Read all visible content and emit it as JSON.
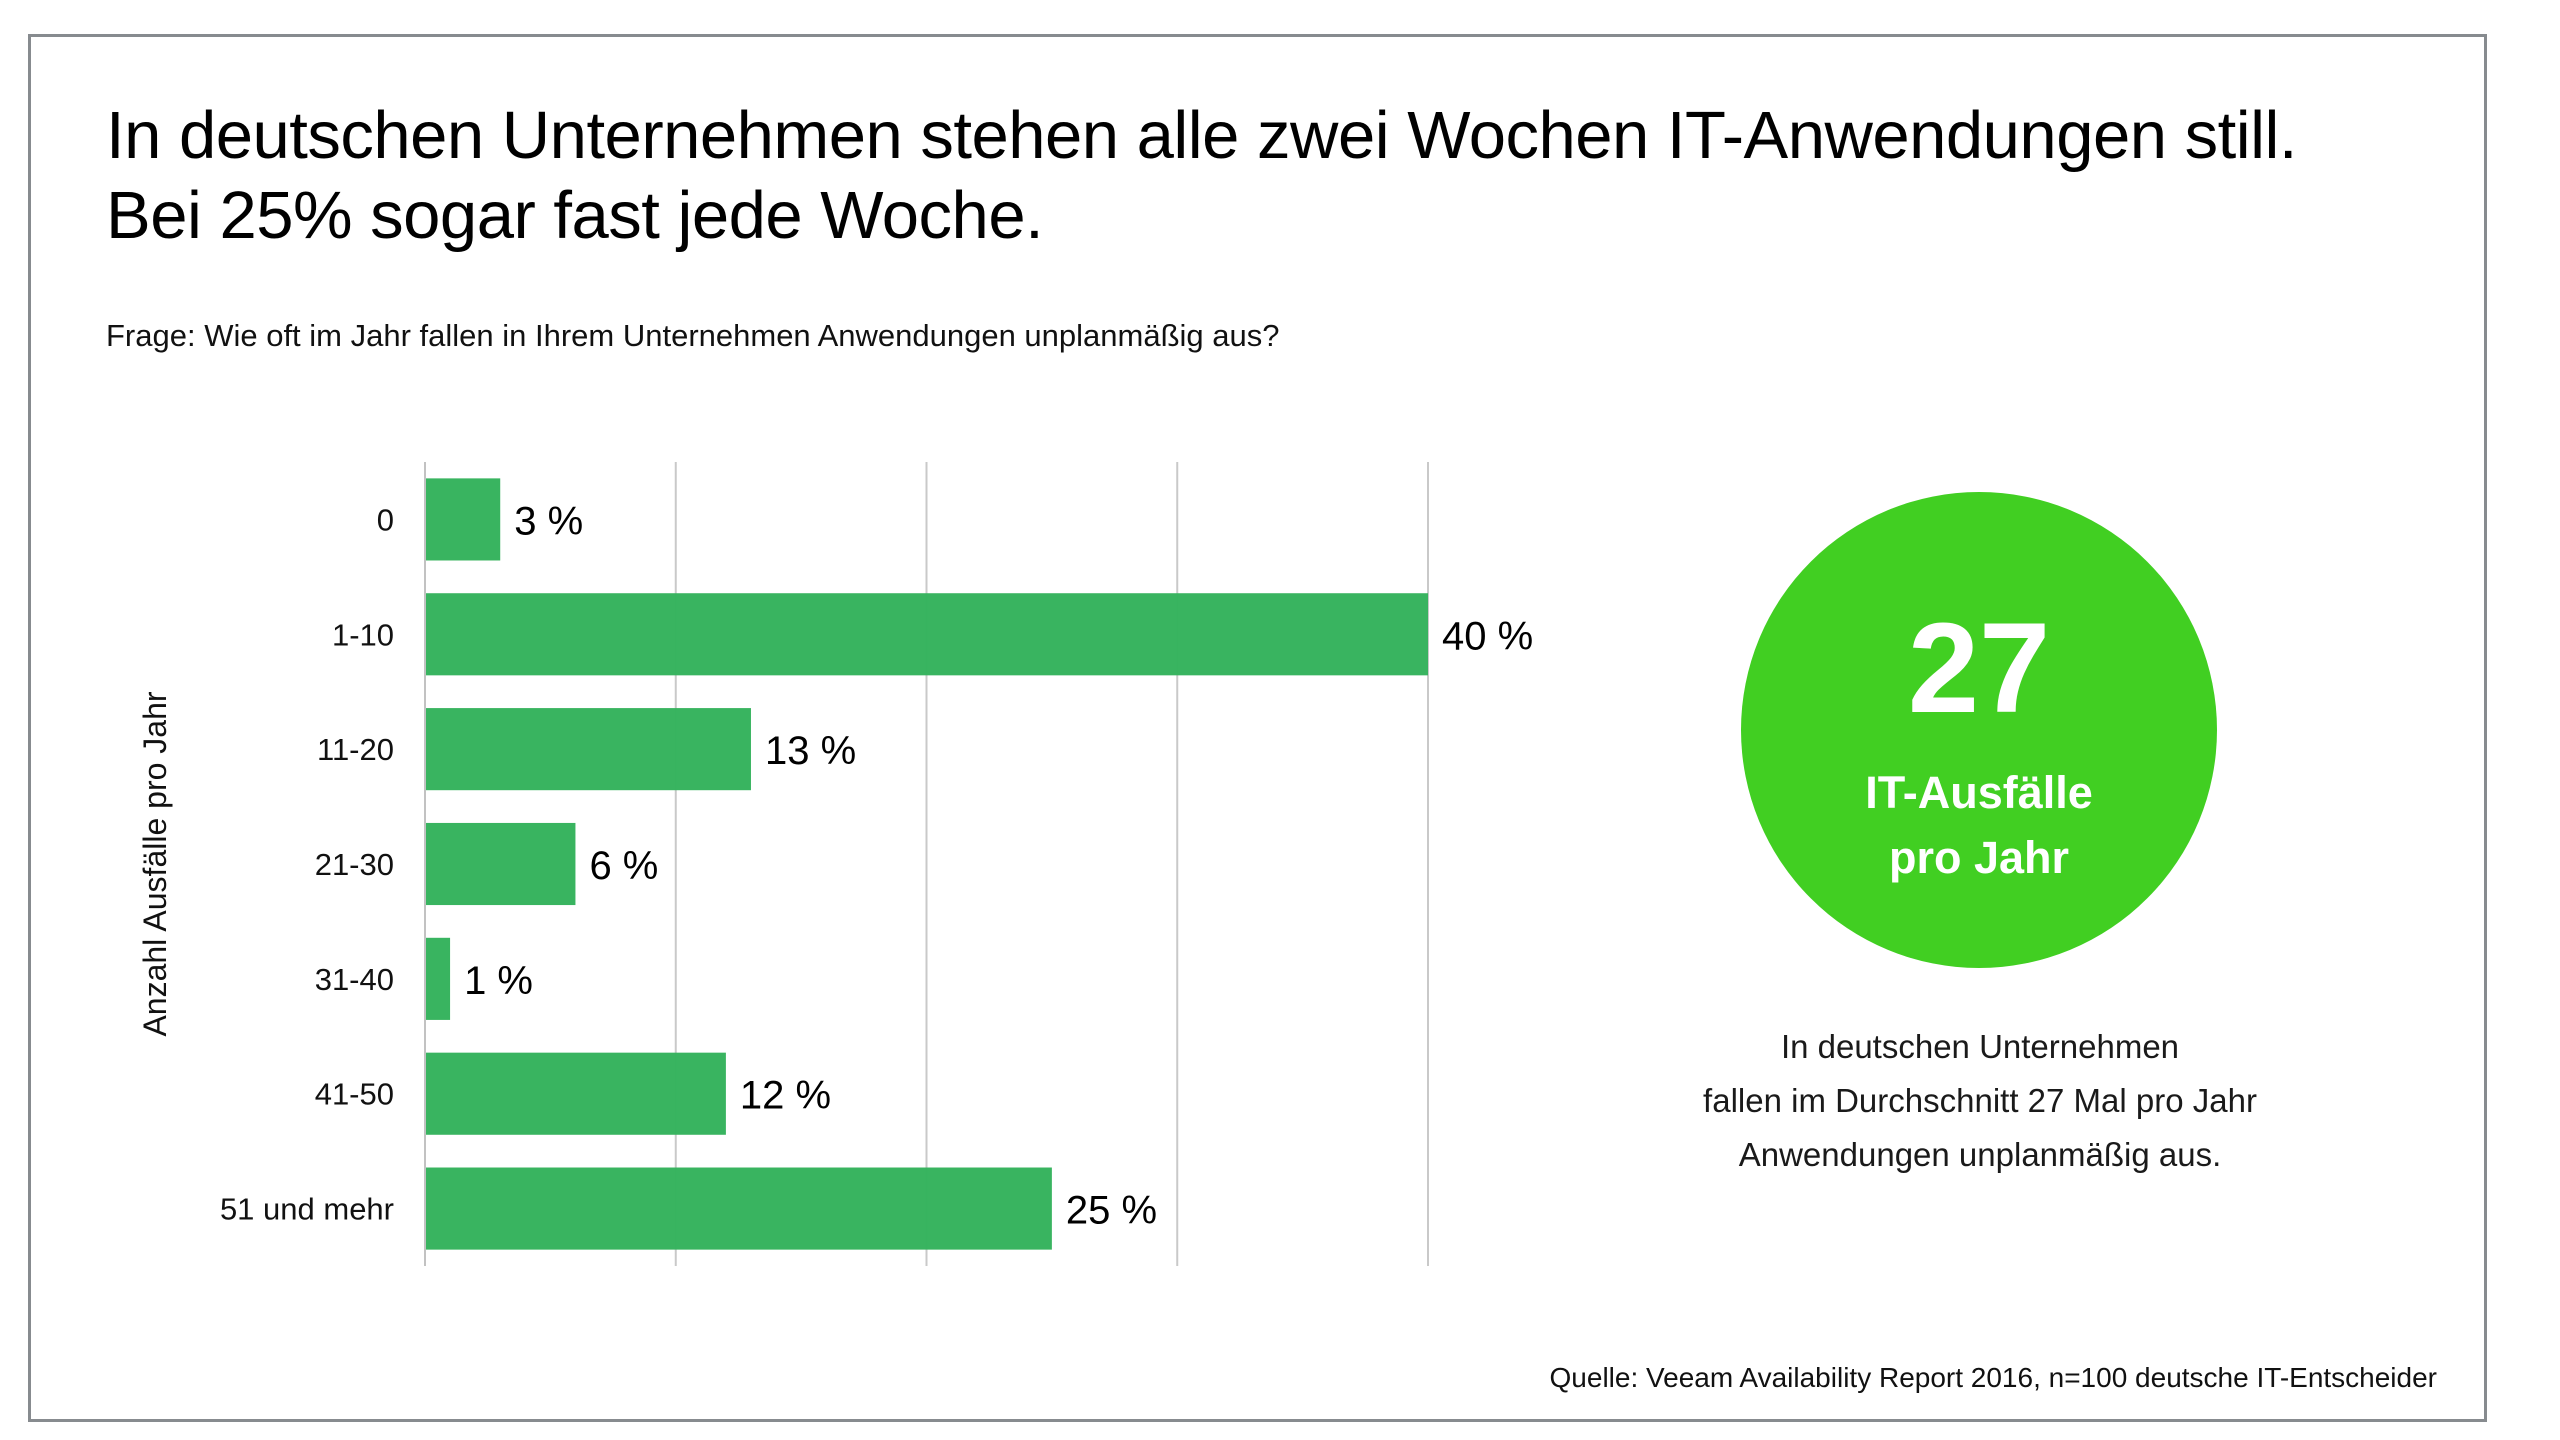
{
  "title": {
    "line1": "In deutschen Unternehmen stehen alle zwei Wochen IT-Anwendungen still.",
    "line2": "Bei 25% sogar fast jede Woche."
  },
  "question": "Frage: Wie oft im Jahr fallen in Ihrem Unternehmen Anwendungen unplanmäßig aus?",
  "highlight": {
    "number": "27",
    "label_line1": "IT-Ausfälle",
    "label_line2": "pro Jahr",
    "circle_color": "#41cf22"
  },
  "note": {
    "line1": "In deutschen Unternehmen",
    "line2": "fallen im Durchschnitt 27 Mal pro Jahr",
    "line3": "Anwendungen unplanmäßig aus."
  },
  "source": "Quelle: Veeam Availability Report 2016, n=100 deutsche IT-Entscheider",
  "chart_data": {
    "type": "bar",
    "orientation": "horizontal",
    "title": "",
    "xlabel": "",
    "ylabel": "Anzahl Ausfälle pro Jahr",
    "categories": [
      "0",
      "1-10",
      "11-20",
      "21-30",
      "31-40",
      "41-50",
      "51 und mehr"
    ],
    "values": [
      3,
      40,
      13,
      6,
      1,
      12,
      25
    ],
    "value_labels": [
      "3 %",
      "40 %",
      "13 %",
      "6 %",
      "1 %",
      "12 %",
      "25 %"
    ],
    "unit": "%",
    "xlim": [
      0,
      40
    ],
    "gridlines_at": [
      10,
      20,
      30,
      40
    ],
    "grid": true,
    "legend": "none",
    "bar_color": "#33b25b",
    "grid_color": "#c9c9c9"
  }
}
